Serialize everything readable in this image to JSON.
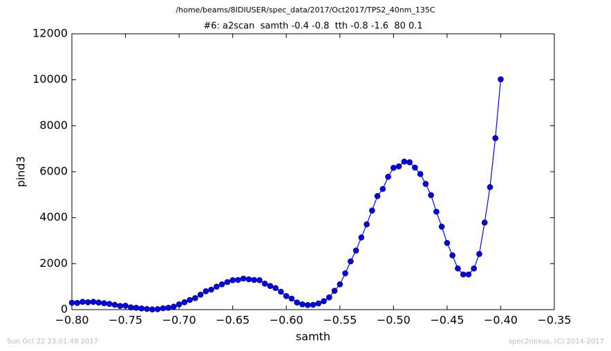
{
  "chart_data": {
    "type": "line",
    "title": "/home/beams/8IDIUSER/spec_data/2017/Oct2017/TPS2_40nm_135C",
    "subtitle": "#6: a2scan  samth -0.4 -0.8  tth -0.8 -1.6  80 0.1",
    "x_label": "samth",
    "y_label": "pind3",
    "footer_left": "Sun Oct 22 23:01:48 2017",
    "footer_right": "spec2nexus, (C) 2014-2017",
    "x": [
      -0.8,
      -0.795,
      -0.79,
      -0.785,
      -0.78,
      -0.775,
      -0.77,
      -0.765,
      -0.76,
      -0.755,
      -0.75,
      -0.745,
      -0.74,
      -0.735,
      -0.73,
      -0.725,
      -0.72,
      -0.715,
      -0.71,
      -0.705,
      -0.7,
      -0.695,
      -0.69,
      -0.685,
      -0.68,
      -0.675,
      -0.67,
      -0.665,
      -0.66,
      -0.655,
      -0.65,
      -0.645,
      -0.64,
      -0.635,
      -0.63,
      -0.625,
      -0.62,
      -0.615,
      -0.61,
      -0.605,
      -0.6,
      -0.595,
      -0.59,
      -0.585,
      -0.58,
      -0.575,
      -0.57,
      -0.565,
      -0.56,
      -0.555,
      -0.55,
      -0.545,
      -0.54,
      -0.535,
      -0.53,
      -0.525,
      -0.52,
      -0.515,
      -0.51,
      -0.505,
      -0.5,
      -0.495,
      -0.49,
      -0.485,
      -0.48,
      -0.475,
      -0.47,
      -0.465,
      -0.46,
      -0.455,
      -0.45,
      -0.445,
      -0.44,
      -0.435,
      -0.43,
      -0.425,
      -0.42,
      -0.415,
      -0.41,
      -0.405,
      -0.4
    ],
    "series": [
      {
        "name": "pind3",
        "color": "#0000ff",
        "values": [
          300,
          290,
          340,
          320,
          340,
          310,
          280,
          250,
          210,
          160,
          170,
          100,
          80,
          50,
          30,
          10,
          20,
          60,
          80,
          130,
          230,
          320,
          420,
          500,
          650,
          800,
          870,
          1000,
          1100,
          1200,
          1280,
          1290,
          1350,
          1320,
          1290,
          1280,
          1130,
          1030,
          940,
          780,
          590,
          480,
          310,
          230,
          200,
          210,
          270,
          370,
          530,
          820,
          1100,
          1580,
          2100,
          2570,
          3140,
          3710,
          4310,
          4940,
          5250,
          5780,
          6170,
          6230,
          6440,
          6410,
          6180,
          5900,
          5470,
          4980,
          4260,
          3610,
          2900,
          2360,
          1790,
          1530,
          1530,
          1790,
          2420,
          3790,
          5330,
          7460,
          10020
        ]
      }
    ],
    "xlim": [
      -0.8,
      -0.35
    ],
    "xticks": [
      {
        "value": -0.8,
        "label": "−0.80"
      },
      {
        "value": -0.75,
        "label": "−0.75"
      },
      {
        "value": -0.7,
        "label": "−0.70"
      },
      {
        "value": -0.65,
        "label": "−0.65"
      },
      {
        "value": -0.6,
        "label": "−0.60"
      },
      {
        "value": -0.55,
        "label": "−0.55"
      },
      {
        "value": -0.5,
        "label": "−0.50"
      },
      {
        "value": -0.45,
        "label": "−0.45"
      },
      {
        "value": -0.4,
        "label": "−0.40"
      },
      {
        "value": -0.35,
        "label": "−0.35"
      }
    ],
    "ylim": [
      0,
      12000
    ],
    "yticks": [
      0,
      2000,
      4000,
      6000,
      8000,
      10000,
      12000
    ],
    "grid": false
  }
}
